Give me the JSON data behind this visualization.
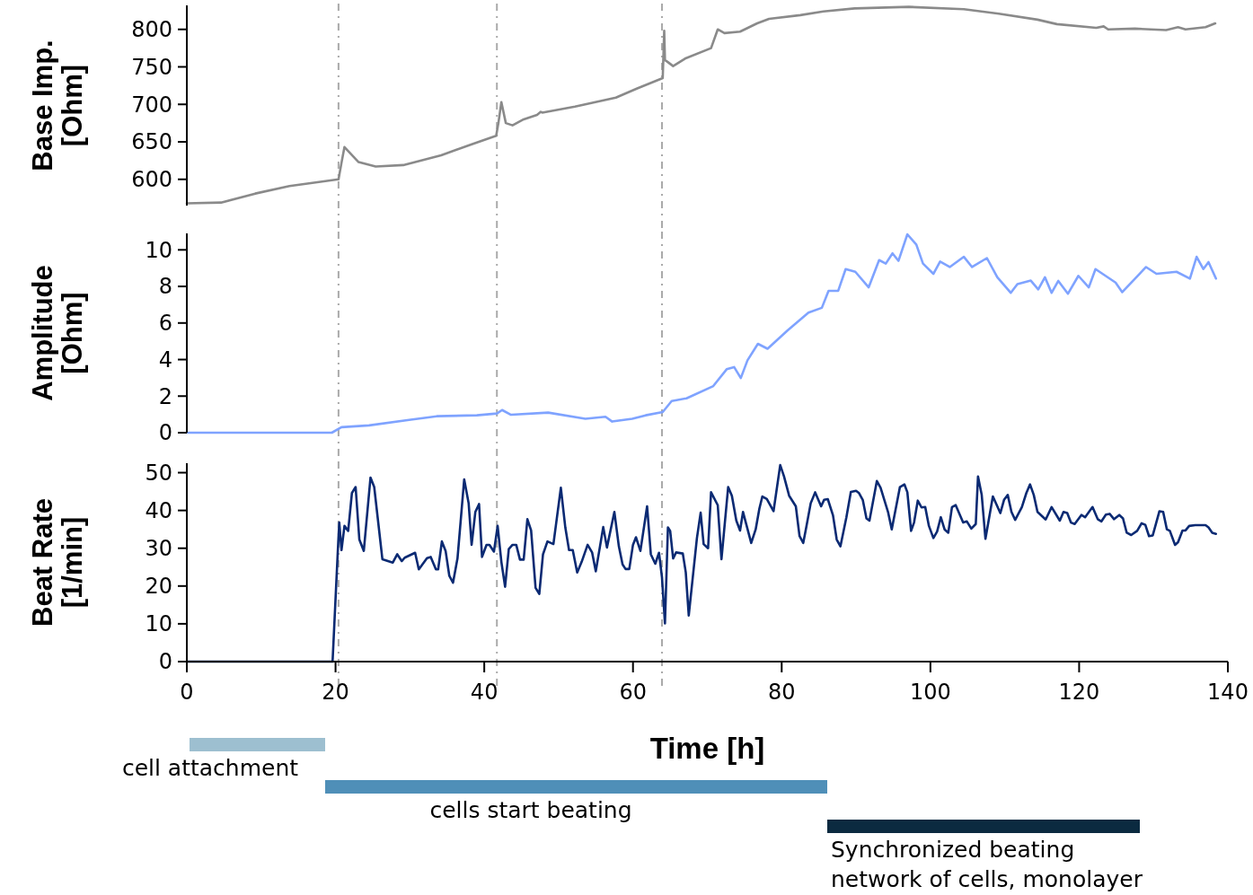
{
  "chart_data": [
    {
      "type": "line",
      "ylabel": "Base Imp. [Ohm]",
      "xlim": [
        0,
        140
      ],
      "ylim": [
        565,
        832
      ],
      "yticks": [
        600,
        650,
        700,
        750,
        800
      ],
      "tick_labels": "y",
      "grid": false,
      "ref_lines": [
        {
          "axis": "x",
          "value": 20.4,
          "color": "#aaaaaa",
          "line_style": "dashed"
        },
        {
          "axis": "x",
          "value": 41.7,
          "color": "#aaaaaa",
          "line_style": "dashed"
        },
        {
          "axis": "x",
          "value": 63.9,
          "color": "#aaaaaa",
          "line_style": "dashed"
        }
      ],
      "series": [
        {
          "color": "#8a8a8a",
          "x": [
            0,
            4.6,
            9.2,
            13.8,
            20.4,
            20.8,
            21.2,
            23.1,
            25.4,
            29.1,
            34.2,
            38.4,
            41.6,
            41.9,
            42.3,
            42.9,
            43.8,
            45.3,
            47.1,
            47.6,
            47.8,
            52.2,
            57.7,
            60.5,
            64.0,
            64.2,
            64.3,
            64.6,
            65.4,
            67,
            70.5,
            71.4,
            72.3,
            74.4,
            76.7,
            78.3,
            82.5,
            85.6,
            89.8,
            97.1,
            104.5,
            109.2,
            114.4,
            117,
            122.3,
            123.3,
            123.9,
            127.5,
            131.7,
            133.3,
            134.3,
            137,
            138.3
          ],
          "values": [
            568,
            569,
            581,
            591,
            600,
            622,
            643,
            623,
            617,
            619,
            632,
            647,
            658,
            675,
            703,
            675,
            672,
            680,
            686,
            690,
            689,
            697,
            709,
            721,
            735,
            798,
            759,
            757,
            751,
            761,
            775,
            800,
            795,
            797,
            808,
            814,
            819,
            824,
            828,
            830,
            827,
            821,
            813,
            807,
            802,
            804,
            800,
            801,
            799,
            803,
            800,
            803,
            808
          ]
        }
      ]
    },
    {
      "type": "line",
      "ylabel": "Amplitude [Ohm]",
      "xlim": [
        0,
        140
      ],
      "ylim": [
        0,
        10.9
      ],
      "yticks": [
        0,
        2,
        4,
        6,
        8,
        10
      ],
      "tick_labels": "y",
      "grid": false,
      "ref_lines": [
        {
          "axis": "x",
          "value": 20.4,
          "color": "#aaaaaa",
          "line_style": "dashed"
        },
        {
          "axis": "x",
          "value": 41.7,
          "color": "#aaaaaa",
          "line_style": "dashed"
        },
        {
          "axis": "x",
          "value": 63.9,
          "color": "#aaaaaa",
          "line_style": "dashed"
        }
      ],
      "series": [
        {
          "color": "#7fa3ff",
          "x": [
            0,
            19.5,
            20.8,
            24.5,
            29.9,
            33.6,
            39,
            41.7,
            42.4,
            43.6,
            48.6,
            53.6,
            56.3,
            57.2,
            59.9,
            61.7,
            64,
            65.2,
            67.2,
            70.8,
            72.6,
            73.6,
            74.5,
            75.4,
            76.8,
            78.1,
            80.8,
            83.6,
            85.4,
            86.3,
            87.6,
            88.6,
            89.9,
            91.7,
            93.1,
            94,
            94.9,
            95.7,
            96.9,
            98.1,
            99,
            100.4,
            101.3,
            102.6,
            104.5,
            105.6,
            107.6,
            109,
            110.8,
            111.7,
            113.5,
            114.5,
            115.4,
            116.3,
            117.2,
            118.5,
            119.9,
            121.3,
            122.2,
            124.9,
            125.8,
            129,
            130.4,
            133.1,
            134.9,
            135.8,
            136.7,
            137.4,
            138.4
          ],
          "values": [
            0,
            0,
            0.3,
            0.4,
            0.7,
            0.9,
            0.95,
            1.05,
            1.24,
            0.98,
            1.1,
            0.76,
            0.87,
            0.61,
            0.76,
            0.95,
            1.13,
            1.73,
            1.88,
            2.55,
            3.47,
            3.59,
            2.99,
            3.96,
            4.86,
            4.59,
            5.6,
            6.57,
            6.83,
            7.76,
            7.76,
            8.95,
            8.8,
            7.95,
            9.44,
            9.25,
            9.81,
            9.4,
            10.85,
            10.29,
            9.25,
            8.69,
            9.36,
            9.06,
            9.62,
            9.06,
            9.55,
            8.5,
            7.65,
            8.13,
            8.32,
            7.84,
            8.5,
            7.65,
            8.3,
            7.6,
            8.58,
            7.95,
            8.95,
            8.21,
            7.69,
            9.06,
            8.69,
            8.8,
            8.43,
            9.62,
            8.95,
            9.33,
            8.43
          ]
        }
      ]
    },
    {
      "type": "line",
      "ylabel": "Beat Rate [1/min]",
      "xlabel": "Time [h]",
      "xlim": [
        0,
        140
      ],
      "ylim": [
        0,
        52.5
      ],
      "xticks": [
        0,
        20,
        40,
        60,
        80,
        100,
        120,
        140
      ],
      "yticks": [
        0,
        10,
        20,
        30,
        40,
        50
      ],
      "grid": false,
      "ref_lines": [
        {
          "axis": "x",
          "value": 20.4,
          "color": "#aaaaaa",
          "line_style": "dashed"
        },
        {
          "axis": "x",
          "value": 41.7,
          "color": "#aaaaaa",
          "line_style": "dashed"
        },
        {
          "axis": "x",
          "value": 63.9,
          "color": "#aaaaaa",
          "line_style": "dashed"
        }
      ],
      "annotations": [
        "cell attachment",
        "cells start beating",
        "Synchronized beating network of cells, monolayer"
      ],
      "series": [
        {
          "color": "#0b2a73",
          "x": [
            0,
            19.6,
            20.3,
            20.5,
            20.8,
            21.2,
            21.7,
            22.2,
            22.7,
            23.2,
            23.8,
            24.7,
            25.2,
            26.3,
            27.7,
            28.3,
            28.9,
            29.3,
            30.7,
            31.2,
            32.3,
            32.8,
            33.5,
            33.8,
            34.3,
            34.8,
            35.3,
            35.8,
            36.4,
            37.3,
            37.9,
            38.3,
            38.8,
            39.3,
            39.7,
            40.3,
            40.7,
            41.3,
            41.8,
            42.3,
            42.8,
            43.3,
            43.8,
            44.3,
            44.8,
            45.3,
            45.8,
            46.3,
            46.9,
            47.4,
            47.9,
            48.5,
            49.3,
            50.3,
            50.9,
            51.4,
            51.9,
            52.5,
            53.1,
            53.9,
            54.5,
            55,
            56,
            56.5,
            57.5,
            58.1,
            58.6,
            59,
            59.5,
            60,
            60.4,
            61,
            61.9,
            62.4,
            63,
            63.5,
            63.9,
            64.3,
            64.7,
            65,
            65.4,
            65.8,
            66.7,
            67.1,
            67.5,
            68.6,
            69.1,
            69.5,
            70.1,
            70.5,
            71.4,
            71.9,
            72.8,
            73.3,
            73.9,
            74.4,
            74.8,
            75.9,
            76.5,
            77,
            77.4,
            78,
            78.9,
            79.8,
            80.3,
            81,
            81.9,
            82.4,
            82.9,
            83.3,
            83.9,
            84.5,
            85.3,
            85.7,
            86.2,
            86.9,
            87.4,
            87.9,
            88.7,
            89.3,
            90,
            90.4,
            90.9,
            91.4,
            91.8,
            92.8,
            93.3,
            94.3,
            94.8,
            95.9,
            96.5,
            96.9,
            97.4,
            97.8,
            98.3,
            98.8,
            99.3,
            99.8,
            100.4,
            100.9,
            101.4,
            101.9,
            102.4,
            102.9,
            103.4,
            104.4,
            104.9,
            105.5,
            106.1,
            106.4,
            106.9,
            107.4,
            108.4,
            109.4,
            109.9,
            110.4,
            110.9,
            111.4,
            112.3,
            112.9,
            113.4,
            113.9,
            114.4,
            115.5,
            116.3,
            117.4,
            117.9,
            118.4,
            118.9,
            119.4,
            120.3,
            120.8,
            121.8,
            122.5,
            123,
            123.6,
            124.1,
            124.7,
            125.4,
            125.9,
            126.4,
            127,
            127.8,
            128.4,
            128.9,
            129.4,
            129.9,
            130.8,
            131.3,
            131.8,
            132.2,
            132.9,
            133.3,
            133.9,
            134.3,
            134.8,
            135.6,
            137,
            137.4,
            137.9,
            138.4
          ],
          "values": [
            0,
            0,
            29.1,
            36.8,
            29.5,
            35.9,
            34.6,
            44.6,
            46.2,
            32.3,
            29.3,
            48.7,
            46.2,
            27.1,
            26.2,
            28.4,
            26.6,
            27.5,
            28.8,
            24.4,
            27.4,
            27.7,
            24.4,
            24.4,
            31.8,
            29.3,
            22.7,
            20.9,
            27.3,
            48.2,
            41.9,
            30.9,
            39.6,
            41.7,
            27.7,
            30.9,
            30.9,
            29.1,
            35.9,
            26.4,
            19.8,
            29.8,
            30.9,
            30.9,
            27,
            27,
            37.7,
            34.7,
            19.5,
            17.9,
            28.4,
            31.8,
            31.1,
            46,
            35.5,
            29.5,
            29.5,
            23.6,
            26.4,
            30.9,
            28.9,
            23.9,
            35.6,
            30.2,
            39.6,
            30.5,
            25.7,
            24.5,
            24.5,
            30.9,
            32.9,
            29.3,
            41.1,
            28.4,
            25.9,
            28.8,
            22.3,
            10.1,
            35.5,
            34.6,
            27.3,
            28.9,
            28.6,
            23.6,
            12.2,
            32.7,
            39.4,
            31.1,
            30,
            44.8,
            41.4,
            27.1,
            46.2,
            43.9,
            37.3,
            34.7,
            39.6,
            31.4,
            35,
            40.5,
            43.7,
            43,
            39.8,
            52,
            49.1,
            43.9,
            41.1,
            33.2,
            31.4,
            35.5,
            41.9,
            44.8,
            41.1,
            42.8,
            43,
            38.7,
            32.3,
            30.5,
            38.2,
            44.9,
            45.2,
            44.6,
            42.8,
            37.9,
            37.3,
            47.8,
            46,
            39.6,
            35,
            46.2,
            46.9,
            44.8,
            34.6,
            36.8,
            42.6,
            40.8,
            40.9,
            35.9,
            32.7,
            34.4,
            38.2,
            35,
            34.1,
            40.9,
            41.4,
            36.8,
            37.1,
            35.2,
            36.4,
            49,
            44.1,
            32.5,
            43.7,
            39.3,
            42.8,
            44.1,
            39.6,
            37.5,
            40.9,
            44.6,
            46.9,
            44.1,
            39.6,
            37.6,
            40.9,
            37.3,
            39.6,
            39.3,
            36.8,
            36.4,
            38.8,
            38.2,
            40.9,
            37.7,
            37.1,
            38.9,
            39.1,
            37.7,
            38.8,
            37.9,
            34.1,
            33.5,
            34.6,
            36.6,
            36.2,
            33.2,
            33.4,
            39.8,
            39.6,
            35,
            34.6,
            30.9,
            31.6,
            34.7,
            34.7,
            35.9,
            36.1,
            36.1,
            35.5,
            34.1,
            33.8
          ]
        }
      ]
    }
  ]
}
